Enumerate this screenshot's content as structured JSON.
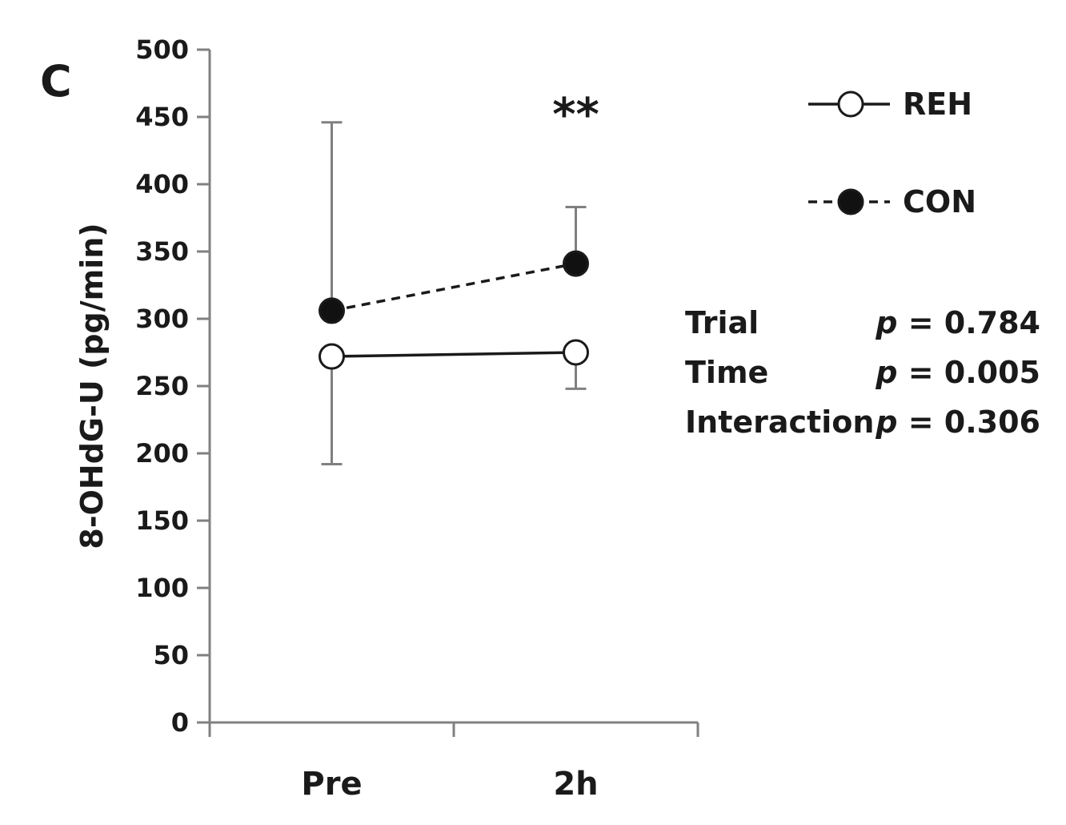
{
  "panel_label": "C",
  "chart_data": {
    "type": "line",
    "categories": [
      "Pre",
      "2h"
    ],
    "ylabel": "8-OHdG-U (pg/min)",
    "xlabel": "",
    "ylim": [
      0,
      500
    ],
    "yticks": [
      0,
      50,
      100,
      150,
      200,
      250,
      300,
      350,
      400,
      450,
      500
    ],
    "grid": false,
    "legend_position": "top-right",
    "series": [
      {
        "name": "REH",
        "marker": "open-circle",
        "line_style": "solid",
        "values": [
          272,
          275
        ],
        "error_lower": [
          80,
          27
        ],
        "error_upper": [
          0,
          0
        ]
      },
      {
        "name": "CON",
        "marker": "filled-circle",
        "line_style": "dashed",
        "values": [
          306,
          341
        ],
        "error_lower": [
          0,
          0
        ],
        "error_upper": [
          140,
          42
        ]
      }
    ],
    "annotations": [
      {
        "text": "**",
        "category": "2h"
      }
    ],
    "stats": [
      {
        "label": "Trial",
        "p_text": "p = 0.784"
      },
      {
        "label": "Time",
        "p_text": "p = 0.005"
      },
      {
        "label": "Interaction",
        "p_text": "p = 0.306"
      }
    ]
  },
  "colors": {
    "ink": "#1a1a1a",
    "axis": "#808080",
    "marker_open_fill": "#ffffff",
    "marker_filled": "#111111"
  }
}
